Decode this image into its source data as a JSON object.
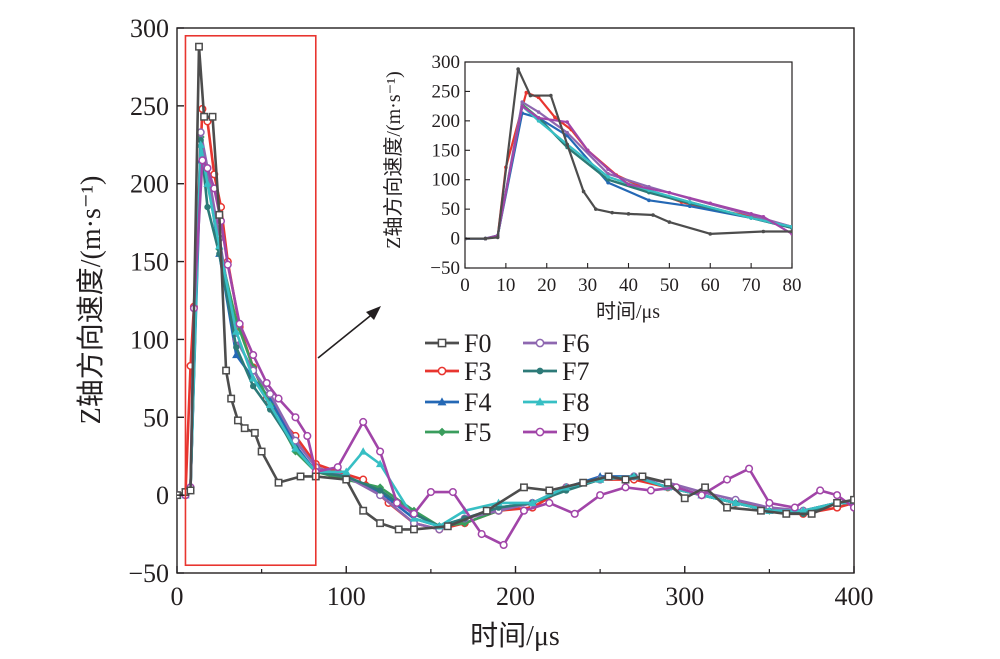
{
  "chart_data": [
    {
      "type": "line",
      "xlabel": "时间/μs",
      "ylabel": "Z轴方向速度/(m·s⁻¹)",
      "xlim": [
        0,
        400
      ],
      "ylim": [
        -50,
        300
      ],
      "xticks": [
        0,
        100,
        200,
        300,
        400
      ],
      "yticks": [
        -50,
        0,
        50,
        100,
        150,
        200,
        250,
        300
      ],
      "grid": false,
      "legend_position": "center-right",
      "highlight_box": {
        "x_range": [
          5,
          82
        ],
        "y_range": [
          -45,
          295
        ]
      },
      "series": [
        {
          "name": "F0",
          "color": "#4d4d4d",
          "marker": "square",
          "x": [
            0,
            5,
            8,
            13,
            16,
            21,
            25,
            29,
            32,
            36,
            40,
            46,
            50,
            60,
            73,
            82,
            100,
            110,
            120,
            131,
            140,
            160,
            183,
            205,
            220,
            240,
            255,
            265,
            275,
            290,
            300,
            312,
            325,
            345,
            360,
            375,
            390,
            400
          ],
          "y": [
            0,
            2,
            3,
            288,
            243,
            243,
            180,
            80,
            62,
            48,
            43,
            40,
            28,
            8,
            12,
            12,
            10,
            -10,
            -18,
            -22,
            -22,
            -20,
            -10,
            5,
            3,
            8,
            12,
            10,
            12,
            8,
            -2,
            5,
            -8,
            -10,
            -12,
            -12,
            -5,
            -3
          ]
        },
        {
          "name": "F3",
          "color": "#e8352f",
          "marker": "circle",
          "x": [
            0,
            5,
            8,
            10,
            15,
            18,
            22,
            26,
            30,
            37,
            45,
            53,
            60,
            70,
            82,
            95,
            110,
            125,
            140,
            155,
            170,
            190,
            210,
            230,
            250,
            270,
            290,
            310,
            330,
            350,
            370,
            390,
            400
          ],
          "y": [
            0,
            0,
            83,
            121,
            248,
            240,
            206,
            185,
            150,
            108,
            82,
            62,
            50,
            38,
            20,
            15,
            10,
            -5,
            -18,
            -22,
            -18,
            -10,
            -8,
            5,
            10,
            10,
            5,
            0,
            -5,
            -8,
            -12,
            -8,
            -5
          ]
        },
        {
          "name": "F4",
          "color": "#2468b5",
          "marker": "triangle",
          "x": [
            0,
            5,
            8,
            14,
            18,
            25,
            35,
            45,
            55,
            70,
            82,
            100,
            120,
            140,
            155,
            170,
            190,
            210,
            230,
            250,
            270,
            290,
            310,
            330,
            350,
            370,
            390,
            400
          ],
          "y": [
            0,
            0,
            5,
            215,
            205,
            155,
            90,
            75,
            62,
            32,
            15,
            12,
            2,
            -15,
            -20,
            -15,
            -8,
            -5,
            5,
            12,
            12,
            5,
            0,
            -5,
            -10,
            -10,
            -5,
            -5
          ]
        },
        {
          "name": "F5",
          "color": "#3a9d5d",
          "marker": "diamond",
          "x": [
            0,
            5,
            8,
            14,
            18,
            25,
            35,
            45,
            55,
            70,
            82,
            100,
            120,
            140,
            155,
            170,
            190,
            210,
            230,
            250,
            270,
            290,
            310,
            330,
            350,
            370,
            390,
            400
          ],
          "y": [
            0,
            0,
            5,
            230,
            210,
            158,
            112,
            82,
            58,
            28,
            15,
            10,
            5,
            -10,
            -20,
            -18,
            -10,
            -5,
            5,
            10,
            12,
            5,
            0,
            -5,
            -10,
            -10,
            -5,
            -5
          ]
        },
        {
          "name": "F6",
          "color": "#8e67b0",
          "marker": "circle",
          "x": [
            0,
            5,
            8,
            14,
            18,
            25,
            35,
            45,
            55,
            70,
            82,
            100,
            120,
            140,
            155,
            170,
            190,
            210,
            230,
            250,
            270,
            290,
            310,
            330,
            350,
            370,
            390,
            400
          ],
          "y": [
            0,
            0,
            5,
            233,
            210,
            165,
            100,
            80,
            65,
            35,
            18,
            12,
            0,
            -18,
            -22,
            -15,
            -10,
            -5,
            5,
            10,
            12,
            8,
            2,
            -3,
            -8,
            -10,
            -5,
            -5
          ]
        },
        {
          "name": "F7",
          "color": "#2d7a78",
          "marker": "pentagon",
          "x": [
            0,
            5,
            8,
            14,
            18,
            25,
            35,
            45,
            55,
            70,
            82,
            100,
            120,
            140,
            155,
            170,
            190,
            210,
            230,
            250,
            270,
            290,
            310,
            330,
            350,
            370,
            390,
            400
          ],
          "y": [
            0,
            0,
            5,
            228,
            185,
            155,
            95,
            70,
            55,
            30,
            15,
            12,
            3,
            -12,
            -20,
            -15,
            -8,
            -5,
            3,
            10,
            12,
            5,
            0,
            -5,
            -10,
            -12,
            -5,
            -5
          ]
        },
        {
          "name": "F8",
          "color": "#37bfc4",
          "marker": "triangle",
          "x": [
            0,
            5,
            8,
            14,
            18,
            25,
            35,
            45,
            55,
            70,
            82,
            100,
            110,
            120,
            140,
            155,
            170,
            190,
            210,
            230,
            250,
            270,
            290,
            310,
            330,
            350,
            370,
            390,
            400
          ],
          "y": [
            0,
            0,
            5,
            225,
            200,
            160,
            105,
            75,
            58,
            30,
            15,
            15,
            28,
            20,
            -15,
            -20,
            -10,
            -5,
            -5,
            5,
            10,
            12,
            5,
            0,
            -5,
            -10,
            -10,
            -5,
            -5
          ]
        },
        {
          "name": "F9",
          "color": "#a145a8",
          "marker": "circle",
          "x": [
            0,
            5,
            8,
            10,
            15,
            18,
            22,
            26,
            30,
            37,
            45,
            53,
            60,
            70,
            77,
            82,
            95,
            110,
            120,
            130,
            140,
            150,
            163,
            180,
            193,
            205,
            220,
            235,
            250,
            265,
            280,
            295,
            310,
            325,
            338,
            350,
            365,
            380,
            390,
            400
          ],
          "y": [
            0,
            0,
            5,
            120,
            215,
            210,
            197,
            176,
            148,
            110,
            90,
            72,
            62,
            50,
            38,
            15,
            18,
            47,
            28,
            -5,
            -12,
            2,
            2,
            -25,
            -32,
            -10,
            -5,
            -12,
            0,
            5,
            3,
            5,
            0,
            10,
            17,
            -5,
            -8,
            3,
            0,
            -8
          ]
        }
      ]
    },
    {
      "type": "line",
      "xlabel": "时间/μs",
      "ylabel": "Z轴方向速度/(m·s⁻¹)",
      "xlim": [
        0,
        80
      ],
      "ylim": [
        -50,
        300
      ],
      "xticks": [
        0,
        10,
        20,
        30,
        40,
        50,
        60,
        70,
        80
      ],
      "yticks": [
        -50,
        0,
        50,
        100,
        150,
        200,
        250,
        300
      ],
      "grid": false,
      "series": [
        {
          "name": "F0",
          "color": "#4d4d4d",
          "x": [
            0,
            5,
            8,
            13,
            16,
            21,
            25,
            29,
            32,
            36,
            40,
            46,
            50,
            60,
            73,
            80
          ],
          "y": [
            0,
            0,
            2,
            288,
            243,
            243,
            160,
            80,
            50,
            44,
            42,
            40,
            28,
            8,
            12,
            12
          ]
        },
        {
          "name": "F3",
          "color": "#e8352f",
          "x": [
            0,
            5,
            8,
            10,
            15,
            18,
            22,
            26,
            30,
            37,
            45,
            53,
            60,
            70,
            80
          ],
          "y": [
            0,
            0,
            3,
            121,
            248,
            240,
            206,
            185,
            150,
            108,
            82,
            62,
            50,
            38,
            20
          ]
        },
        {
          "name": "F4",
          "color": "#2468b5",
          "x": [
            0,
            5,
            8,
            14,
            18,
            25,
            35,
            45,
            55,
            70,
            80
          ],
          "y": [
            0,
            0,
            5,
            213,
            205,
            175,
            95,
            65,
            55,
            35,
            18
          ]
        },
        {
          "name": "F5",
          "color": "#3a9d5d",
          "x": [
            0,
            5,
            8,
            14,
            18,
            25,
            35,
            45,
            55,
            70,
            80
          ],
          "y": [
            0,
            0,
            5,
            228,
            205,
            155,
            100,
            80,
            62,
            35,
            20
          ]
        },
        {
          "name": "F6",
          "color": "#8e67b0",
          "x": [
            0,
            5,
            8,
            14,
            18,
            25,
            35,
            45,
            55,
            70,
            80
          ],
          "y": [
            0,
            0,
            5,
            232,
            215,
            180,
            110,
            88,
            68,
            40,
            20
          ]
        },
        {
          "name": "F7",
          "color": "#2d7a78",
          "x": [
            0,
            5,
            8,
            14,
            18,
            25,
            35,
            45,
            55,
            70,
            80
          ],
          "y": [
            0,
            0,
            5,
            225,
            205,
            155,
            100,
            78,
            60,
            35,
            18
          ]
        },
        {
          "name": "F8",
          "color": "#37bfc4",
          "x": [
            0,
            5,
            8,
            14,
            18,
            25,
            35,
            45,
            55,
            70,
            80
          ],
          "y": [
            0,
            0,
            5,
            225,
            200,
            160,
            105,
            82,
            62,
            35,
            20
          ]
        },
        {
          "name": "F9",
          "color": "#a145a8",
          "x": [
            0,
            5,
            8,
            14,
            18,
            25,
            30,
            35,
            40,
            50,
            60,
            70,
            73,
            80
          ],
          "y": [
            0,
            0,
            5,
            225,
            205,
            198,
            150,
            118,
            92,
            78,
            60,
            42,
            37,
            8
          ]
        }
      ]
    }
  ]
}
